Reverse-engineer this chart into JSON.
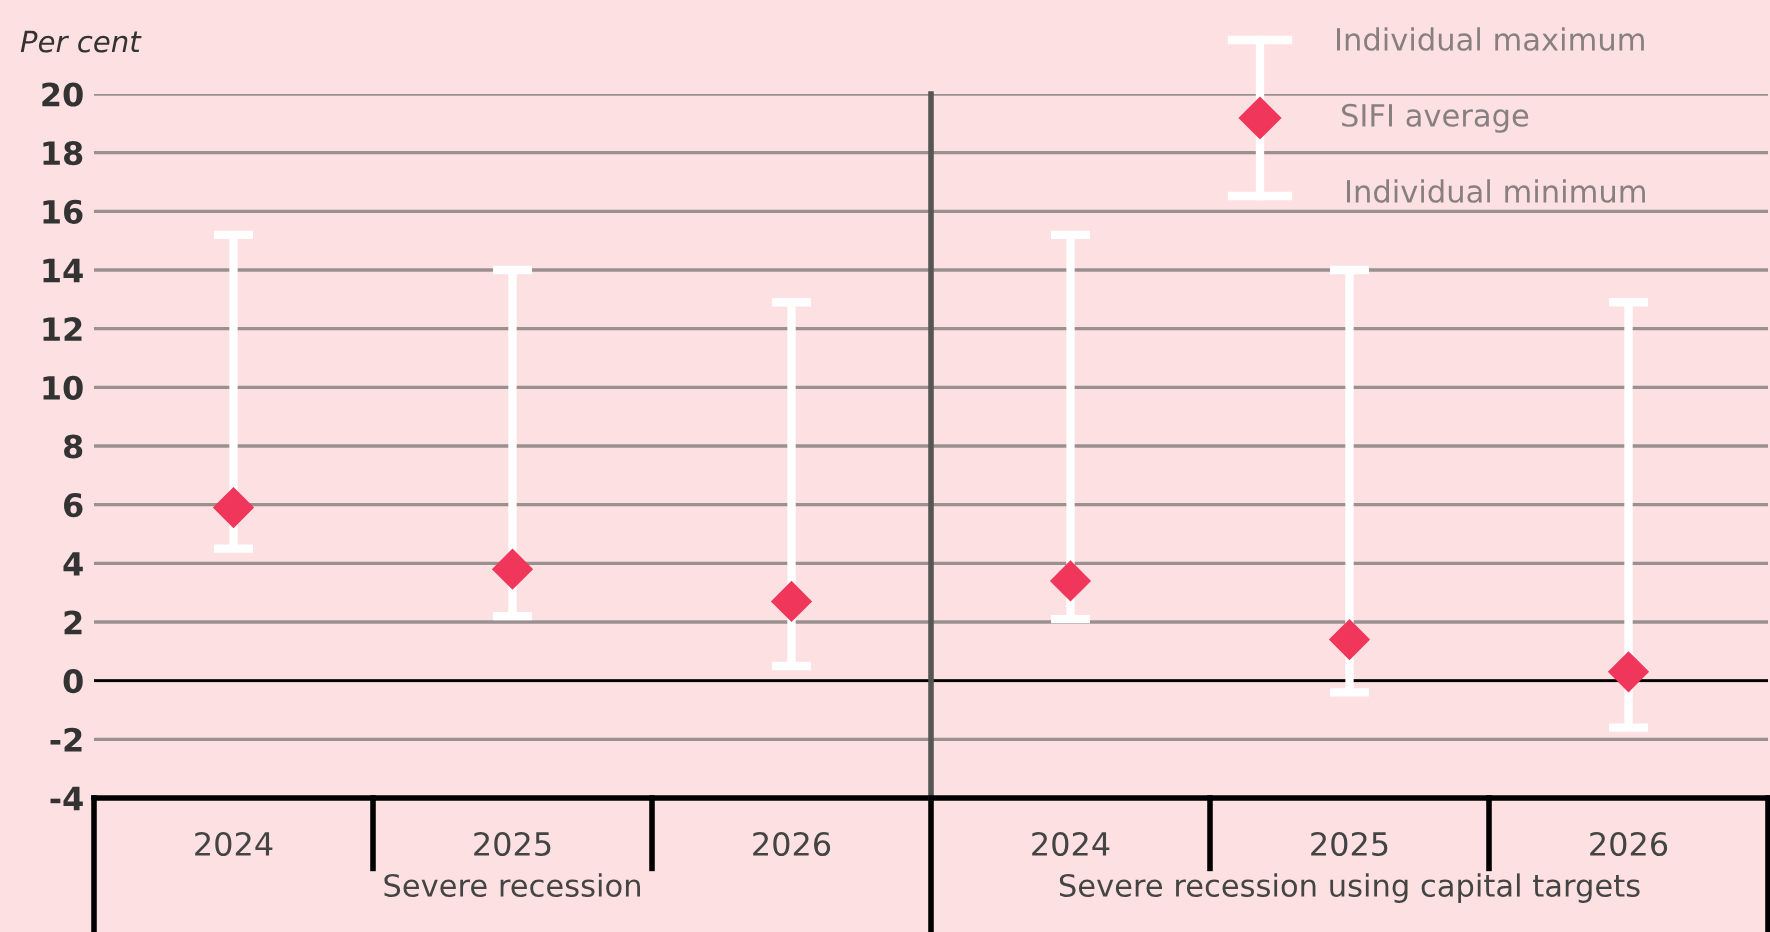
{
  "chart_data": [
    {
      "type": "scatter",
      "ylabel": "Per cent",
      "xlabel": "Severe recession",
      "categories": [
        "2024",
        "2025",
        "2026"
      ],
      "series": [
        {
          "color": "#f0365a",
          "values": [
            5.9,
            3.8,
            2.7
          ],
          "errors": [
            [
              4.5,
              15.2
            ],
            [
              2.2,
              14.0
            ],
            [
              0.5,
              12.9
            ]
          ]
        }
      ],
      "ylim": [
        -4,
        20
      ],
      "yticks": [
        -4,
        -2,
        0,
        2,
        4,
        6,
        8,
        10,
        12,
        14,
        16,
        18,
        20
      ],
      "grid": "y",
      "marker": "diamond"
    },
    {
      "type": "scatter",
      "xlabel": "Severe recession using capital targets",
      "categories": [
        "2024",
        "2025",
        "2026"
      ],
      "series": [
        {
          "name": "SIFI average",
          "color": "#f0365a",
          "values": [
            3.4,
            1.4,
            0.3
          ],
          "errors": [
            [
              2.1,
              15.2
            ],
            [
              -0.4,
              14.0
            ],
            [
              -1.6,
              12.9
            ]
          ]
        }
      ],
      "ylim": [
        -4,
        20
      ],
      "yticks": [
        -4,
        -2,
        0,
        2,
        4,
        6,
        8,
        10,
        12,
        14,
        16,
        18,
        20
      ],
      "tick_labels": "x",
      "grid": "y",
      "marker": "diamond",
      "legend": "top right",
      "annotations": [
        "Individual maximum",
        "Individual minimum"
      ]
    }
  ]
}
